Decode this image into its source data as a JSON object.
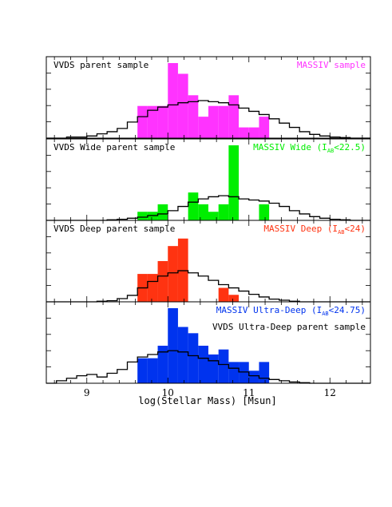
{
  "chart_data": {
    "type": "bar",
    "xlabel": "log(Stellar Mass) [Msun]",
    "xlim": [
      8.5,
      12.5
    ],
    "x_ticks": [
      "9",
      "10",
      "11",
      "12"
    ],
    "bin_width": 0.125,
    "panels": [
      {
        "parent_label": "VVDS parent sample",
        "massiv_label": "MASSIV sample",
        "massiv_sub": "",
        "massiv_close": "",
        "color": "#ff33ff",
        "label_layout": "parent-left",
        "ylim": [
          0,
          7
        ],
        "massiv_bins": {
          "x": [
            9.5,
            9.625,
            9.75,
            9.875,
            10.0,
            10.125,
            10.25,
            10.375,
            10.5,
            10.625,
            10.75,
            10.875,
            11.0,
            11.125,
            11.25
          ],
          "values": [
            0,
            3,
            3,
            3,
            7,
            6,
            4,
            2,
            3,
            3,
            4,
            1,
            1,
            2,
            0
          ]
        },
        "parent_hist": {
          "x": [
            8.5,
            8.625,
            8.75,
            8.875,
            9.0,
            9.125,
            9.25,
            9.375,
            9.5,
            9.625,
            9.75,
            9.875,
            10.0,
            10.125,
            10.25,
            10.375,
            10.5,
            10.625,
            10.75,
            10.875,
            11.0,
            11.125,
            11.25,
            11.375,
            11.5,
            11.625,
            11.75,
            11.875,
            12.0,
            12.125,
            12.25,
            12.375
          ],
          "values": [
            0,
            0,
            0.1,
            0.1,
            0.2,
            0.4,
            0.6,
            0.9,
            1.5,
            2.0,
            2.6,
            2.9,
            3.1,
            3.3,
            3.4,
            3.5,
            3.4,
            3.3,
            3.1,
            2.8,
            2.5,
            2.2,
            1.8,
            1.4,
            1.0,
            0.6,
            0.35,
            0.2,
            0.1,
            0.05,
            0,
            0
          ]
        }
      },
      {
        "parent_label": "VVDS Wide parent sample",
        "massiv_label": "MASSIV Wide (I",
        "massiv_sub": "AB",
        "massiv_close": "<22.5)",
        "color": "#00ee00",
        "label_layout": "parent-left",
        "ylim": [
          0,
          7
        ],
        "massiv_bins": {
          "x": [
            9.5,
            9.625,
            9.75,
            9.875,
            10.0,
            10.125,
            10.25,
            10.375,
            10.5,
            10.625,
            10.75,
            10.875,
            11.0,
            11.125,
            11.25
          ],
          "values": [
            0,
            0.8,
            0.8,
            1.5,
            0,
            0,
            2.6,
            1.5,
            0.8,
            1.5,
            7,
            0,
            0,
            1.5,
            0
          ]
        },
        "parent_hist": {
          "x": [
            8.5,
            8.625,
            8.75,
            8.875,
            9.0,
            9.125,
            9.25,
            9.375,
            9.5,
            9.625,
            9.75,
            9.875,
            10.0,
            10.125,
            10.25,
            10.375,
            10.5,
            10.625,
            10.75,
            10.875,
            11.0,
            11.125,
            11.25,
            11.375,
            11.5,
            11.625,
            11.75,
            11.875,
            12.0,
            12.125,
            12.25,
            12.375
          ],
          "values": [
            0,
            0,
            0,
            0,
            0,
            0,
            0.05,
            0.1,
            0.2,
            0.3,
            0.45,
            0.6,
            0.9,
            1.3,
            1.7,
            2.0,
            2.2,
            2.3,
            2.2,
            2.0,
            1.9,
            1.8,
            1.6,
            1.3,
            0.9,
            0.6,
            0.35,
            0.2,
            0.1,
            0.05,
            0,
            0
          ]
        }
      },
      {
        "parent_label": "VVDS Deep parent sample",
        "massiv_label": "MASSIV Deep (I",
        "massiv_sub": "AB",
        "massiv_close": "<24)",
        "color": "#ff3311",
        "label_layout": "parent-left",
        "ylim": [
          0,
          7
        ],
        "massiv_bins": {
          "x": [
            9.5,
            9.625,
            9.75,
            9.875,
            10.0,
            10.125,
            10.25,
            10.375,
            10.5,
            10.625,
            10.75,
            10.875,
            11.0,
            11.125,
            11.25
          ],
          "values": [
            0,
            2.6,
            2.6,
            3.8,
            5.2,
            5.9,
            0,
            0,
            0,
            1.3,
            0.65,
            0,
            0,
            0,
            0
          ]
        },
        "parent_hist": {
          "x": [
            8.5,
            8.625,
            8.75,
            8.875,
            9.0,
            9.125,
            9.25,
            9.375,
            9.5,
            9.625,
            9.75,
            9.875,
            10.0,
            10.125,
            10.25,
            10.375,
            10.5,
            10.625,
            10.75,
            10.875,
            11.0,
            11.125,
            11.25,
            11.375,
            11.5,
            11.625,
            11.75,
            11.875,
            12.0,
            12.125,
            12.25,
            12.375
          ],
          "values": [
            0,
            0,
            0,
            0,
            0,
            0.05,
            0.1,
            0.3,
            0.6,
            1.3,
            1.9,
            2.4,
            2.7,
            2.9,
            2.7,
            2.4,
            2.0,
            1.6,
            1.3,
            1.0,
            0.7,
            0.45,
            0.25,
            0.15,
            0.05,
            0,
            0,
            0,
            0,
            0,
            0,
            0
          ]
        }
      },
      {
        "parent_label": "VVDS Ultra-Deep parent sample",
        "massiv_label": "MASSIV Ultra-Deep (I",
        "massiv_sub": "AB",
        "massiv_close": "<24.75)",
        "color": "#0033ee",
        "label_layout": "massiv-top",
        "ylim": [
          0,
          6
        ],
        "massiv_bins": {
          "x": [
            9.5,
            9.625,
            9.75,
            9.875,
            10.0,
            10.125,
            10.25,
            10.375,
            10.5,
            10.625,
            10.75,
            10.875,
            11.0,
            11.125,
            11.25
          ],
          "values": [
            0,
            2.0,
            2.0,
            3.0,
            6.0,
            4.5,
            4.0,
            3.0,
            2.3,
            2.7,
            1.7,
            1.7,
            1.0,
            1.7,
            0
          ]
        },
        "parent_hist": {
          "x": [
            8.5,
            8.625,
            8.75,
            8.875,
            9.0,
            9.125,
            9.25,
            9.375,
            9.5,
            9.625,
            9.75,
            9.875,
            10.0,
            10.125,
            10.25,
            10.375,
            10.5,
            10.625,
            10.75,
            10.875,
            11.0,
            11.125,
            11.25,
            11.375,
            11.5,
            11.625,
            11.75,
            11.875,
            12.0,
            12.125,
            12.25,
            12.375
          ],
          "values": [
            0,
            0.2,
            0.4,
            0.6,
            0.7,
            0.5,
            0.8,
            1.1,
            1.7,
            2.1,
            2.3,
            2.5,
            2.6,
            2.5,
            2.2,
            2.0,
            1.8,
            1.5,
            1.2,
            0.9,
            0.6,
            0.4,
            0.3,
            0.2,
            0.1,
            0.05,
            0,
            0,
            0,
            0,
            0,
            0
          ]
        }
      }
    ]
  }
}
